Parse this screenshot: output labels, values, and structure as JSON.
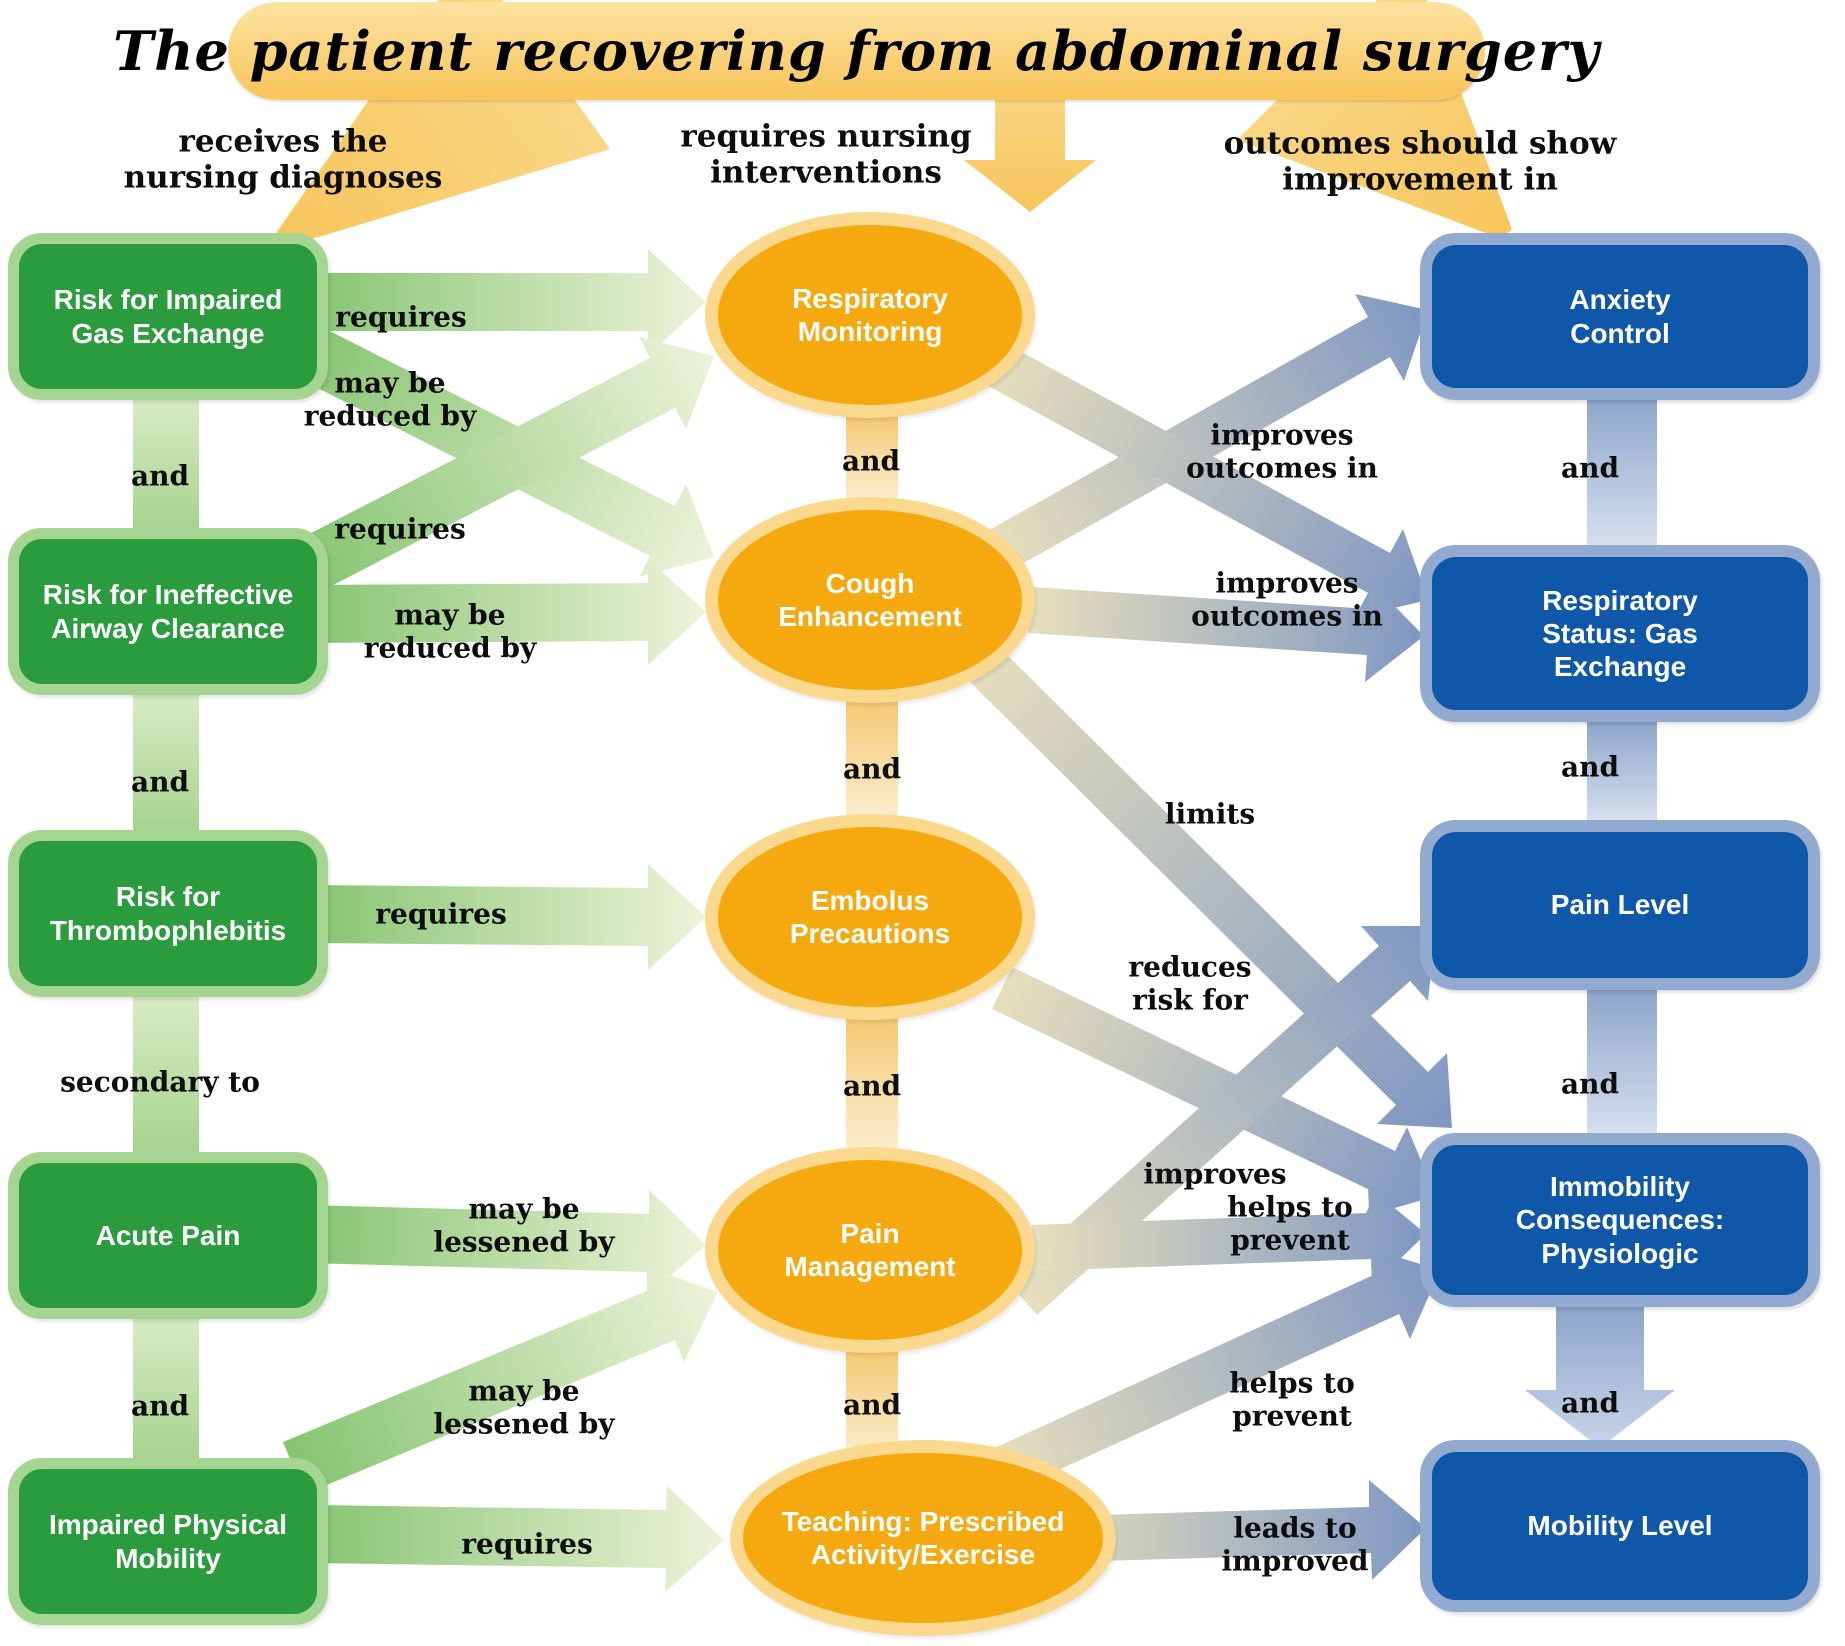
{
  "banner": {
    "title": "The patient recovering from abdominal surgery"
  },
  "headers": {
    "diagnoses": "receives the\nnursing diagnoses",
    "interventions": "requires nursing\ninterventions",
    "outcomes": "outcomes should show\nimprovement in"
  },
  "nodes": {
    "diagnoses": [
      "Risk for Impaired\nGas Exchange",
      "Risk for Ineffective\nAirway Clearance",
      "Risk for\nThrombophlebitis",
      "Acute Pain",
      "Impaired Physical\nMobility"
    ],
    "interventions": [
      "Respiratory\nMonitoring",
      "Cough\nEnhancement",
      "Embolus\nPrecautions",
      "Pain\nManagement",
      "Teaching: Prescribed\nActivity/Exercise"
    ],
    "outcomes": [
      "Anxiety\nControl",
      "Respiratory\nStatus: Gas\nExchange",
      "Pain Level",
      "Immobility\nConsequences:\nPhysiologic",
      "Mobility Level"
    ]
  },
  "labels": {
    "and": "and",
    "requires": "requires",
    "may_be_reduced_by": "may be\nreduced by",
    "may_be_lessened_by": "may be\nlessened by",
    "secondary_to": "secondary to",
    "improves_outcomes_in": "improves\noutcomes in",
    "limits": "limits",
    "reduces_risk_for": "reduces\nrisk for",
    "improves": "improves",
    "helps_to_prevent": "helps to\nprevent",
    "leads_to_improved": "leads to\nimproved"
  },
  "colors": {
    "banner_top": "#FCE3A2",
    "banner_bottom": "#F8C65E",
    "diagnosis_fill": "#2B9C3E",
    "diagnosis_ring": "#A5D591",
    "intervention_fill": "#F6A90E",
    "intervention_ring": "#FAD88D",
    "outcome_fill": "#0F57A8",
    "outcome_ring": "#93AAD0",
    "label_text": "#0d0d0d",
    "gradients": {
      "yellow": [
        "#FAD684",
        "#F7C65C"
      ],
      "green": [
        "#85C470",
        "#EEF3DA"
      ],
      "greenv": [
        "#D8ECC6",
        "#A6D38D"
      ],
      "orangev": [
        "#F5C873",
        "#FAEDCC"
      ],
      "tanblue": [
        "#E7DFBD",
        "#7E97C2"
      ],
      "bluev": [
        "#8CA5CB",
        "#D7E0EE"
      ],
      "bigblue": [
        "#8CA5CB",
        "#C9D5E8"
      ]
    }
  },
  "edges": [
    {
      "name": "banner-to-diagnoses",
      "p": [
        540,
        52,
        278,
        242
      ],
      "w0": 240,
      "w1": 14,
      "g": "yellow"
    },
    {
      "name": "banner-to-interventions",
      "p": [
        1030,
        85,
        1030,
        212
      ],
      "w0": 70,
      "hl": 52,
      "hw": 132,
      "g": "yellow"
    },
    {
      "name": "banner-to-outcomes",
      "p": [
        1325,
        52,
        1507,
        234
      ],
      "w0": 250,
      "w1": 14,
      "g": "yellow"
    },
    {
      "name": "gas-requires-respmon",
      "p": [
        306,
        302,
        706,
        302
      ],
      "w0": 58,
      "hl": 58,
      "hw": 106,
      "g": "green"
    },
    {
      "name": "gas-maybereducedby-cough",
      "p": [
        301,
        348,
        714,
        557
      ],
      "w0": 56,
      "hl": 58,
      "hw": 104,
      "g": "green"
    },
    {
      "name": "airway-requires-respmon",
      "p": [
        301,
        570,
        714,
        356
      ],
      "w0": 56,
      "hl": 58,
      "hw": 104,
      "g": "green"
    },
    {
      "name": "airway-maybereducedby-cough",
      "p": [
        306,
        614,
        706,
        612
      ],
      "w0": 58,
      "hl": 58,
      "hw": 106,
      "g": "green"
    },
    {
      "name": "thrombo-requires-embolus",
      "p": [
        306,
        914,
        706,
        917
      ],
      "w0": 58,
      "hl": 58,
      "hw": 106,
      "g": "green"
    },
    {
      "name": "acutepain-maybelessenedby-painmgmt",
      "p": [
        306,
        1234,
        706,
        1245
      ],
      "w0": 58,
      "hl": 58,
      "hw": 106,
      "g": "green"
    },
    {
      "name": "mobility-maybelessenedby-painmgmt",
      "p": [
        294,
        1468,
        718,
        1292
      ],
      "w0": 56,
      "hl": 58,
      "hw": 104,
      "g": "green"
    },
    {
      "name": "mobility-requires-teaching",
      "p": [
        306,
        1534,
        724,
        1540
      ],
      "w0": 58,
      "hl": 58,
      "hw": 106,
      "g": "green"
    },
    {
      "name": "link-gas-airway",
      "p": [
        166,
        398,
        166,
        530
      ],
      "w0": 66,
      "g": "greenv"
    },
    {
      "name": "link-airway-thrombo",
      "p": [
        166,
        691,
        166,
        832
      ],
      "w0": 66,
      "g": "greenv"
    },
    {
      "name": "link-thrombo-acutepain",
      "p": [
        166,
        993,
        166,
        1154
      ],
      "w0": 66,
      "g": "greenv"
    },
    {
      "name": "link-acutepain-mobility",
      "p": [
        166,
        1315,
        166,
        1460
      ],
      "w0": 66,
      "g": "greenv"
    },
    {
      "name": "link-respmon-cough",
      "p": [
        872,
        413,
        872,
        500
      ],
      "w0": 52,
      "g": "orangev"
    },
    {
      "name": "link-cough-embolus",
      "p": [
        872,
        698,
        872,
        816
      ],
      "w0": 52,
      "g": "orangev"
    },
    {
      "name": "link-embolus-painmgmt",
      "p": [
        872,
        1015,
        872,
        1149
      ],
      "w0": 52,
      "g": "orangev"
    },
    {
      "name": "link-painmgmt-teaching",
      "p": [
        872,
        1348,
        872,
        1455
      ],
      "w0": 52,
      "g": "orangev"
    },
    {
      "name": "cough-improvesoutcomes-anxiety",
      "p": [
        995,
        553,
        1428,
        310
      ],
      "w0": 46,
      "hl": 56,
      "hw": 100,
      "g": "tanblue"
    },
    {
      "name": "respmon-improvesoutcomes-respstatus",
      "p": [
        992,
        362,
        1428,
        600
      ],
      "w0": 46,
      "hl": 56,
      "hw": 100,
      "g": "tanblue"
    },
    {
      "name": "cough-improvesoutcomes-respstatus",
      "p": [
        1030,
        610,
        1424,
        636
      ],
      "w0": 46,
      "hl": 56,
      "hw": 100,
      "g": "tanblue"
    },
    {
      "name": "cough-limits-immobility",
      "p": [
        972,
        652,
        1452,
        1128
      ],
      "w0": 46,
      "hl": 56,
      "hw": 100,
      "g": "tanblue"
    },
    {
      "name": "embolus-reducesriskfor-immobility",
      "p": [
        1002,
        988,
        1436,
        1196
      ],
      "w0": 46,
      "hl": 56,
      "hw": 100,
      "g": "tanblue"
    },
    {
      "name": "painmgmt-improves-painlevel",
      "p": [
        1022,
        1298,
        1436,
        926
      ],
      "w0": 46,
      "hl": 56,
      "hw": 100,
      "g": "tanblue"
    },
    {
      "name": "painmgmt-helpsprevent-immobility",
      "p": [
        1032,
        1248,
        1426,
        1234
      ],
      "w0": 46,
      "hl": 56,
      "hw": 100,
      "g": "tanblue"
    },
    {
      "name": "teaching-helpsprevent-immobility",
      "p": [
        998,
        1472,
        1440,
        1270
      ],
      "w0": 46,
      "hl": 56,
      "hw": 100,
      "g": "tanblue"
    },
    {
      "name": "teaching-leadstoimproved-mobility",
      "p": [
        1032,
        1540,
        1426,
        1528
      ],
      "w0": 46,
      "hl": 56,
      "hw": 100,
      "g": "tanblue"
    },
    {
      "name": "link-anxiety-respstatus",
      "p": [
        1622,
        398,
        1622,
        548
      ],
      "w0": 70,
      "g": "bluev"
    },
    {
      "name": "link-respstatus-painlevel",
      "p": [
        1622,
        720,
        1622,
        822
      ],
      "w0": 70,
      "g": "bluev"
    },
    {
      "name": "link-painlevel-immobility",
      "p": [
        1622,
        988,
        1622,
        1136
      ],
      "w0": 70,
      "g": "bluev"
    },
    {
      "name": "link-immobility-mobility",
      "p": [
        1600,
        1305,
        1600,
        1448
      ],
      "w0": 88,
      "hl": 58,
      "hw": 150,
      "g": "bigblue"
    }
  ]
}
